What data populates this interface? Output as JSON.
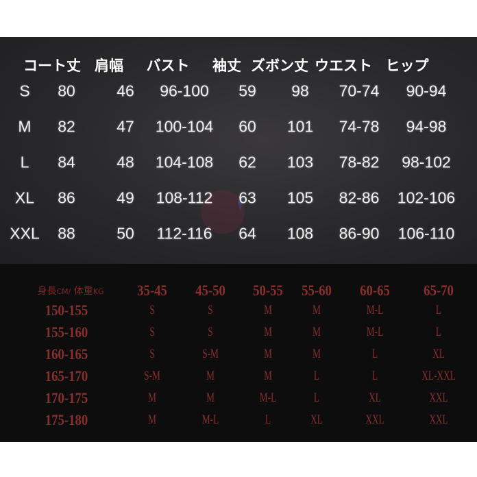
{
  "measurement_table": {
    "headers": [
      "コート丈",
      "肩幅",
      "バスト",
      "袖丈",
      "ズボン丈",
      "ウエスト",
      "ヒップ"
    ],
    "rows": [
      {
        "size": "S",
        "values": [
          "80",
          "46",
          "96-100",
          "59",
          "98",
          "70-74",
          "90-94"
        ]
      },
      {
        "size": "M",
        "values": [
          "82",
          "47",
          "100-104",
          "60",
          "101",
          "74-78",
          "94-98"
        ]
      },
      {
        "size": "L",
        "values": [
          "84",
          "48",
          "104-108",
          "62",
          "103",
          "78-82",
          "98-102"
        ]
      },
      {
        "size": "XL",
        "values": [
          "86",
          "49",
          "108-112",
          "63",
          "105",
          "82-86",
          "102-106"
        ]
      },
      {
        "size": "XXL",
        "values": [
          "88",
          "50",
          "112-116",
          "64",
          "108",
          "86-90",
          "106-110"
        ]
      }
    ]
  },
  "size_guide": {
    "corner_label": {
      "height": "身長",
      "height_unit": "CM/",
      "weight": "体重",
      "weight_unit": "KG"
    },
    "weights": [
      "35-45",
      "45-50",
      "50-55",
      "55-60",
      "60-65",
      "65-70"
    ],
    "rows": [
      {
        "height": "150-155",
        "sizes": [
          "S",
          "S",
          "M",
          "M",
          "M-L",
          "L"
        ]
      },
      {
        "height": "155-160",
        "sizes": [
          "S",
          "S",
          "M",
          "M",
          "M-L",
          "L"
        ]
      },
      {
        "height": "160-165",
        "sizes": [
          "S",
          "S-M",
          "M",
          "M",
          "L",
          "XL"
        ]
      },
      {
        "height": "165-170",
        "sizes": [
          "S-M",
          "M",
          "M",
          "L",
          "L",
          "XL-XXL"
        ]
      },
      {
        "height": "170-175",
        "sizes": [
          "M",
          "M",
          "M-L",
          "L",
          "XL",
          "XXL"
        ]
      },
      {
        "height": "175-180",
        "sizes": [
          "M",
          "M-L",
          "L",
          "XL",
          "XXL",
          "XXL"
        ]
      }
    ]
  },
  "colors": {
    "guide_text": "#7a2a2a",
    "panel_dark": "#2a2a2d",
    "panel_black": "#0d0d0d"
  }
}
